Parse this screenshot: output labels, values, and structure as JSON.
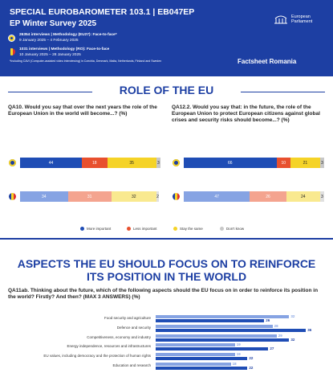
{
  "header": {
    "title": "SPECIAL EUROBAROMETER 103.1 | EB047EP",
    "subtitle": "EP Winter Survey 2025",
    "eu_method": "26354 interviews | Methodology (EU27): Face-to-face*",
    "eu_dates": "9 January 2025 – 4 February 2025",
    "ro_method": "1031 interviews | Methodology (RO): Face-to-face",
    "ro_dates": "10 January 2025 – 28 January 2025",
    "footnote": "*Including CAVI (Computer-assisted video interviewing) in Czechia, Denmark, Malta, Netherlands, Finland and Sweden",
    "logo": "European Parliament",
    "factsheet": "Factsheet Romania"
  },
  "section1": {
    "title": "ROLE OF THE EU",
    "legend": [
      "More important",
      "Less important",
      "Stay the same",
      "Don't know"
    ],
    "questions": [
      {
        "text": "QA10. Would you say that over the next years the role of the European Union in the world will become...? (%)",
        "eu": [
          44,
          18,
          35,
          3
        ],
        "ro": [
          34,
          31,
          32,
          2
        ]
      },
      {
        "text": "QA12.2. Would you say that: in the future, the role of the European Union to protect European citizens against global crises and security risks should become...? (%)",
        "eu": [
          66,
          10,
          21,
          3
        ],
        "ro": [
          47,
          26,
          24,
          3
        ]
      }
    ]
  },
  "section2": {
    "title": "ASPECTS THE EU SHOULD FOCUS ON TO REINFORCE ITS POSITION IN THE WORLD",
    "question": "QA11ab. Thinking about the future, which of the following aspects should the EU focus on in order to reinforce its position in the world? Firstly? And then? (MAX 3 ANSWERS) (%)",
    "items": [
      {
        "label": "Food security and agriculture",
        "ro": 32,
        "eu": 26
      },
      {
        "label": "Defence and security",
        "ro": 28,
        "eu": 36
      },
      {
        "label": "Competitiveness, economy and industry",
        "ro": 29,
        "eu": 32
      },
      {
        "label": "Energy independence, resources and infrastructures",
        "ro": 19,
        "eu": 27
      },
      {
        "label": "EU values, including democracy and the protection of human rights",
        "ro": 19,
        "eu": 22
      },
      {
        "label": "Education and research",
        "ro": 18,
        "eu": 22
      }
    ]
  }
}
